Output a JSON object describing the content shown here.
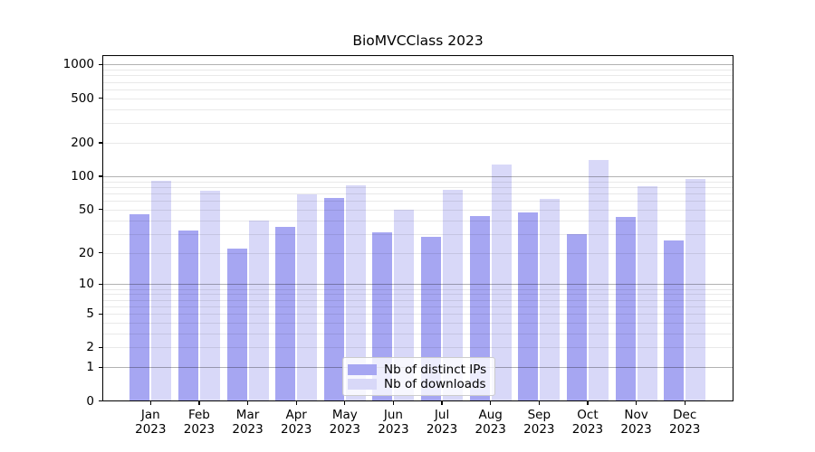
{
  "chart_data": {
    "type": "bar",
    "title": "BioMVCClass 2023",
    "categories": [
      "Jan 2023",
      "Feb 2023",
      "Mar 2023",
      "Apr 2023",
      "May 2023",
      "Jun 2023",
      "Jul 2023",
      "Aug 2023",
      "Sep 2023",
      "Oct 2023",
      "Nov 2023",
      "Dec 2023"
    ],
    "series": [
      {
        "name": "Nb of distinct IPs",
        "color": "#a6a6f2",
        "values": [
          45,
          32,
          22,
          35,
          64,
          31,
          28,
          44,
          47,
          30,
          43,
          26
        ]
      },
      {
        "name": "Nb of downloads",
        "color": "#d8d8f8",
        "values": [
          91,
          74,
          40,
          69,
          83,
          50,
          75,
          128,
          62,
          141,
          82,
          95
        ]
      }
    ],
    "xlabel": "",
    "ylabel": "",
    "yscale": "log10(value+1)",
    "yticks": [
      0,
      1,
      2,
      5,
      10,
      20,
      50,
      100,
      200,
      500,
      1000
    ],
    "major_grid_at": [
      1,
      10,
      100,
      1000
    ],
    "ylim": [
      0,
      1225
    ],
    "grid": true,
    "legend_position": "lower center",
    "background_color": "#ffffff",
    "text_color": "#000000",
    "major_grid_color": "rgba(0,0,0,0.30)",
    "minor_grid_color": "rgba(0,0,0,0.085)"
  }
}
